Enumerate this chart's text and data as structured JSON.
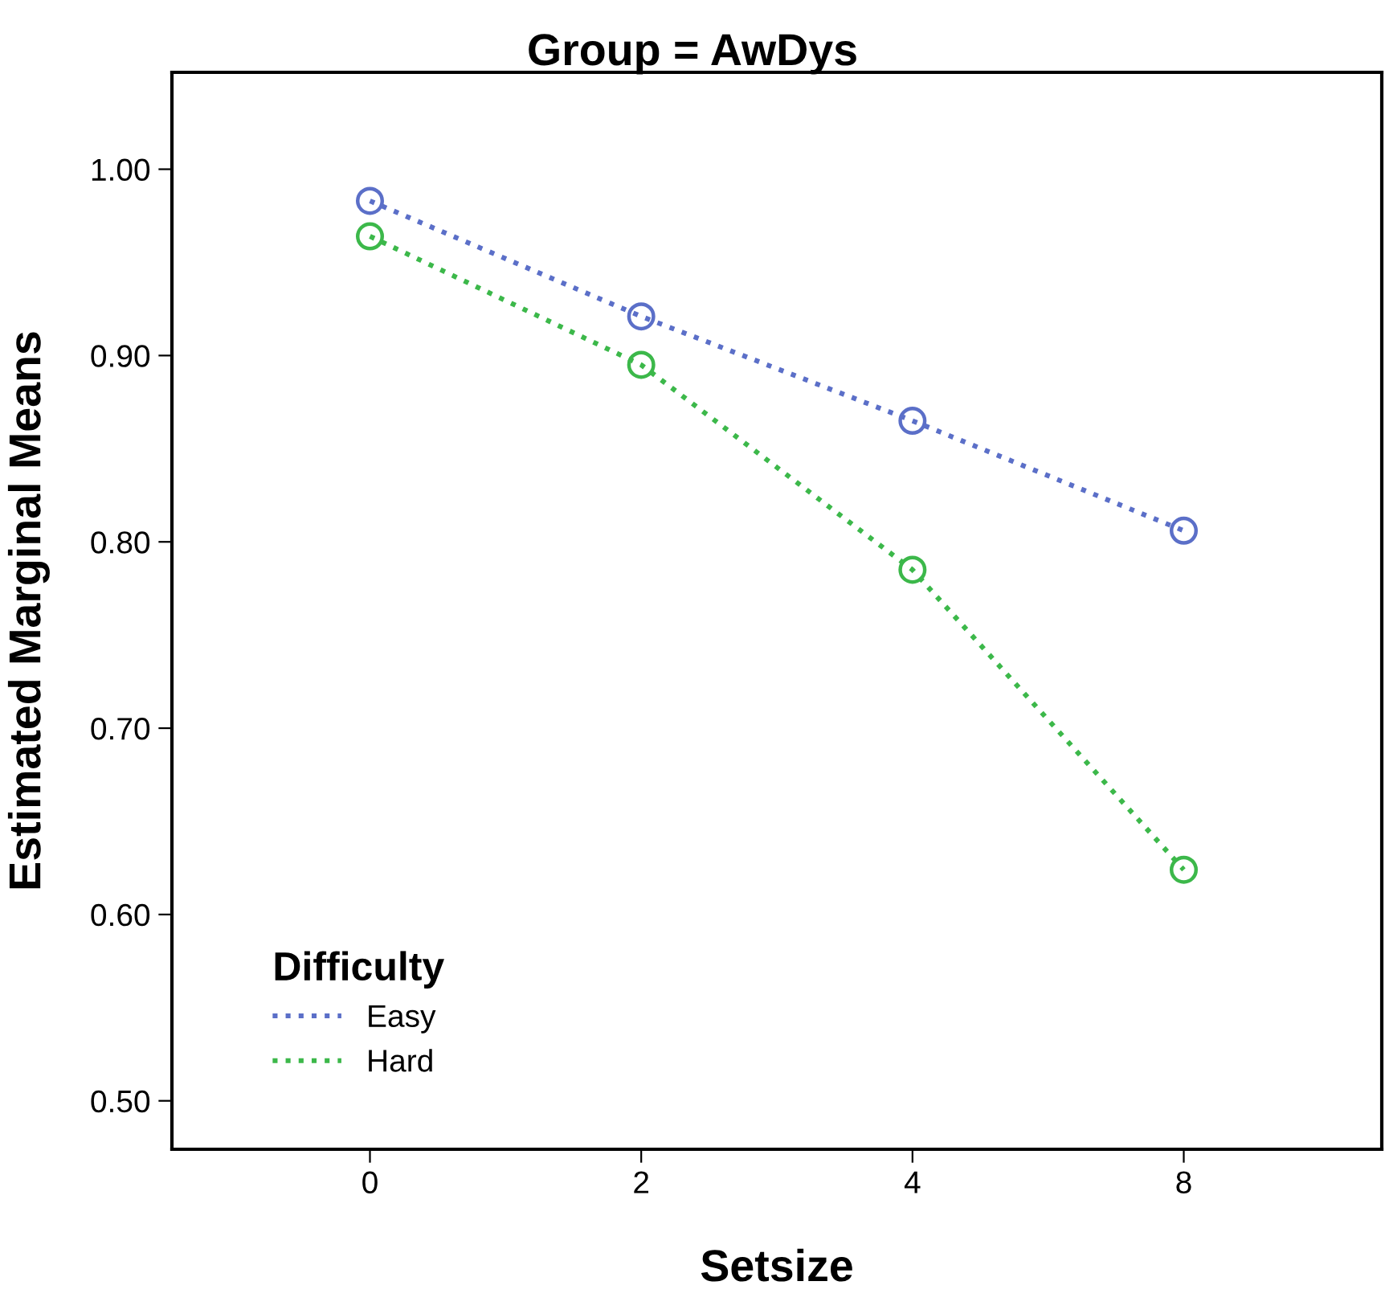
{
  "chart_data": {
    "type": "line",
    "title": "Group = AwDys",
    "xlabel": "Setsize",
    "ylabel": "Estimated Marginal Means",
    "legend_title": "Difficulty",
    "legend": "bottom left",
    "categories": [
      "0",
      "2",
      "4",
      "8"
    ],
    "series": [
      {
        "name": "Easy",
        "color": "#5b6fc8",
        "values": [
          0.983,
          0.921,
          0.865,
          0.806
        ]
      },
      {
        "name": "Hard",
        "color": "#3cb84a",
        "values": [
          0.964,
          0.895,
          0.785,
          0.624
        ]
      }
    ],
    "ylim": [
      0.474,
      1.052
    ],
    "yticks": [
      {
        "value": 0.5,
        "label": "0.50"
      },
      {
        "value": 0.6,
        "label": "0.60"
      },
      {
        "value": 0.7,
        "label": "0.70"
      },
      {
        "value": 0.8,
        "label": "0.80"
      },
      {
        "value": 0.9,
        "label": "0.90"
      },
      {
        "value": 1.0,
        "label": "1.00"
      }
    ],
    "marker": "circle",
    "line_style": "dotted",
    "grid": false
  }
}
